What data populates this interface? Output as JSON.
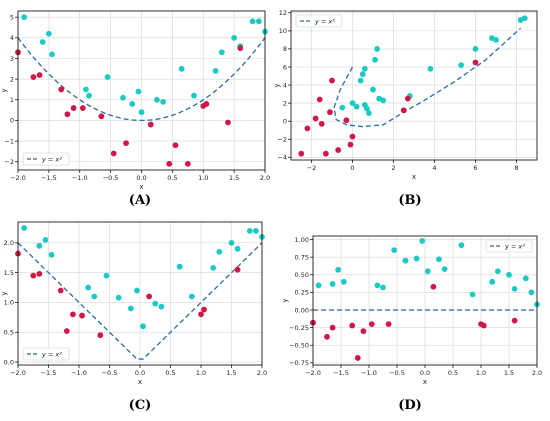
{
  "colors": {
    "teal": "#1cc9c4",
    "crimson": "#d11748",
    "curve": "#2b6aa6",
    "axis": "#000000"
  },
  "chart_data": [
    {
      "panel": "(A)",
      "type": "scatter",
      "xlabel": "x",
      "ylabel": "y",
      "xlim": [
        -2.0,
        2.0
      ],
      "ylim": [
        -2.4,
        5.3
      ],
      "xticks": [
        -2.0,
        -1.5,
        -1.0,
        -0.5,
        0.0,
        0.5,
        1.0,
        1.5,
        2.0
      ],
      "yticks": [
        -2,
        -1,
        0,
        1,
        2,
        3,
        4,
        5
      ],
      "curve": {
        "label": "y = x²",
        "form": "x^2"
      },
      "legend": "lower-left",
      "teal": [
        [
          -1.9,
          5.0
        ],
        [
          -1.6,
          3.8
        ],
        [
          -1.5,
          4.2
        ],
        [
          -1.45,
          3.2
        ],
        [
          -0.9,
          1.5
        ],
        [
          -0.85,
          1.2
        ],
        [
          -0.55,
          2.1
        ],
        [
          -0.3,
          1.1
        ],
        [
          -0.15,
          0.8
        ],
        [
          -0.05,
          1.4
        ],
        [
          0.0,
          0.4
        ],
        [
          0.25,
          1.0
        ],
        [
          0.35,
          0.9
        ],
        [
          0.65,
          2.5
        ],
        [
          0.85,
          1.2
        ],
        [
          1.2,
          2.4
        ],
        [
          1.3,
          3.3
        ],
        [
          1.5,
          4.0
        ],
        [
          1.8,
          4.8
        ],
        [
          1.9,
          4.8
        ],
        [
          2.0,
          4.3
        ],
        [
          1.6,
          3.6
        ]
      ],
      "crimson": [
        [
          -2.0,
          3.3
        ],
        [
          -1.75,
          2.1
        ],
        [
          -1.65,
          2.2
        ],
        [
          -1.3,
          1.5
        ],
        [
          -1.2,
          0.3
        ],
        [
          -1.1,
          0.6
        ],
        [
          -0.95,
          0.6
        ],
        [
          -0.65,
          0.2
        ],
        [
          -0.45,
          -1.6
        ],
        [
          -0.25,
          -1.1
        ],
        [
          0.15,
          -0.2
        ],
        [
          0.45,
          -2.1
        ],
        [
          0.55,
          -1.2
        ],
        [
          0.75,
          -2.1
        ],
        [
          1.0,
          0.7
        ],
        [
          1.05,
          0.8
        ],
        [
          1.4,
          -0.1
        ],
        [
          1.6,
          3.5
        ]
      ]
    },
    {
      "panel": "(B)",
      "type": "scatter",
      "xlabel": "x",
      "ylabel": "y",
      "xlim": [
        -3.0,
        9.0
      ],
      "ylim": [
        -4.3,
        12.2
      ],
      "xticks": [
        -2,
        0,
        2,
        4,
        6,
        8
      ],
      "yticks": [
        -4,
        -2,
        0,
        2,
        4,
        6,
        8,
        10,
        12
      ],
      "curve": {
        "label": "y = x²",
        "form": "parametric"
      },
      "legend": "upper-left",
      "teal": [
        [
          -0.5,
          1.5
        ],
        [
          0.0,
          2.0
        ],
        [
          0.2,
          1.6
        ],
        [
          0.4,
          4.5
        ],
        [
          0.5,
          5.2
        ],
        [
          0.6,
          5.8
        ],
        [
          0.6,
          1.8
        ],
        [
          0.7,
          1.4
        ],
        [
          0.8,
          0.9
        ],
        [
          1.0,
          3.5
        ],
        [
          1.1,
          6.8
        ],
        [
          1.2,
          8.0
        ],
        [
          1.3,
          2.5
        ],
        [
          1.5,
          2.3
        ],
        [
          2.8,
          2.8
        ],
        [
          3.8,
          5.8
        ],
        [
          5.3,
          6.2
        ],
        [
          6.0,
          8.0
        ],
        [
          6.8,
          9.2
        ],
        [
          7.0,
          9.0
        ],
        [
          8.2,
          11.2
        ],
        [
          8.4,
          11.4
        ]
      ],
      "crimson": [
        [
          -2.5,
          -3.6
        ],
        [
          -2.2,
          -0.8
        ],
        [
          -1.8,
          0.3
        ],
        [
          -1.6,
          2.4
        ],
        [
          -1.5,
          -0.3
        ],
        [
          -1.3,
          -3.6
        ],
        [
          -1.1,
          1.0
        ],
        [
          -1.0,
          4.5
        ],
        [
          -0.7,
          -3.2
        ],
        [
          -0.3,
          0.1
        ],
        [
          0.0,
          -1.7
        ],
        [
          -0.1,
          -2.6
        ],
        [
          2.5,
          1.2
        ],
        [
          2.7,
          2.5
        ],
        [
          6.0,
          6.5
        ]
      ]
    },
    {
      "panel": "(C)",
      "type": "scatter",
      "xlabel": "x",
      "ylabel": "y",
      "xlim": [
        -2.0,
        2.0
      ],
      "ylim": [
        -0.05,
        2.35
      ],
      "xticks": [
        -2.0,
        -1.5,
        -1.0,
        -0.5,
        0.0,
        0.5,
        1.0,
        1.5,
        2.0
      ],
      "yticks": [
        0.0,
        0.5,
        1.0,
        1.5,
        2.0
      ],
      "curve": {
        "label": "y = x²",
        "form": "abs"
      },
      "legend": "lower-left",
      "teal": [
        [
          -1.9,
          2.25
        ],
        [
          -1.65,
          1.95
        ],
        [
          -1.55,
          2.05
        ],
        [
          -1.45,
          1.8
        ],
        [
          -0.85,
          1.25
        ],
        [
          -0.75,
          1.1
        ],
        [
          -0.55,
          1.45
        ],
        [
          -0.35,
          1.08
        ],
        [
          -0.15,
          0.9
        ],
        [
          -0.05,
          1.2
        ],
        [
          0.05,
          0.6
        ],
        [
          0.25,
          0.98
        ],
        [
          0.35,
          0.93
        ],
        [
          0.65,
          1.6
        ],
        [
          0.85,
          1.1
        ],
        [
          1.2,
          1.58
        ],
        [
          1.3,
          1.85
        ],
        [
          1.5,
          2.0
        ],
        [
          1.8,
          2.2
        ],
        [
          1.9,
          2.2
        ],
        [
          2.0,
          2.1
        ],
        [
          1.6,
          1.9
        ]
      ],
      "crimson": [
        [
          -2.0,
          1.82
        ],
        [
          -1.75,
          1.45
        ],
        [
          -1.65,
          1.48
        ],
        [
          -1.3,
          1.2
        ],
        [
          -1.2,
          0.52
        ],
        [
          -1.1,
          0.8
        ],
        [
          -0.95,
          0.78
        ],
        [
          -0.65,
          0.45
        ],
        [
          1.0,
          0.8
        ],
        [
          1.05,
          0.88
        ],
        [
          1.6,
          1.55
        ],
        [
          0.15,
          1.1
        ]
      ]
    },
    {
      "panel": "(D)",
      "type": "scatter",
      "xlabel": "x",
      "ylabel": "y",
      "xlim": [
        -2.0,
        2.0
      ],
      "ylim": [
        -0.78,
        1.05
      ],
      "xticks": [
        -2.0,
        -1.5,
        -1.0,
        -0.5,
        0.0,
        0.5,
        1.0,
        1.5,
        2.0
      ],
      "yticks": [
        -0.75,
        -0.5,
        -0.25,
        0.0,
        0.25,
        0.5,
        0.75,
        1.0
      ],
      "curve": {
        "label": "y = x²",
        "form": "zero"
      },
      "legend": "upper-right",
      "teal": [
        [
          -1.9,
          0.35
        ],
        [
          -1.65,
          0.37
        ],
        [
          -1.55,
          0.57
        ],
        [
          -1.45,
          0.4
        ],
        [
          -0.85,
          0.35
        ],
        [
          -0.75,
          0.32
        ],
        [
          -0.55,
          0.85
        ],
        [
          -0.35,
          0.7
        ],
        [
          -0.15,
          0.73
        ],
        [
          -0.05,
          0.98
        ],
        [
          0.05,
          0.55
        ],
        [
          0.25,
          0.72
        ],
        [
          0.35,
          0.58
        ],
        [
          0.65,
          0.92
        ],
        [
          0.85,
          0.22
        ],
        [
          1.2,
          0.4
        ],
        [
          1.3,
          0.55
        ],
        [
          1.5,
          0.5
        ],
        [
          1.6,
          0.3
        ],
        [
          1.8,
          0.45
        ],
        [
          1.9,
          0.25
        ],
        [
          2.0,
          0.08
        ]
      ],
      "crimson": [
        [
          -2.0,
          -0.18
        ],
        [
          -1.75,
          -0.38
        ],
        [
          -1.65,
          -0.25
        ],
        [
          -1.3,
          -0.22
        ],
        [
          -1.2,
          -0.68
        ],
        [
          -1.1,
          -0.3
        ],
        [
          -0.95,
          -0.2
        ],
        [
          -0.65,
          -0.2
        ],
        [
          1.0,
          -0.2
        ],
        [
          1.05,
          -0.22
        ],
        [
          1.6,
          -0.15
        ],
        [
          0.15,
          0.33
        ]
      ]
    }
  ]
}
